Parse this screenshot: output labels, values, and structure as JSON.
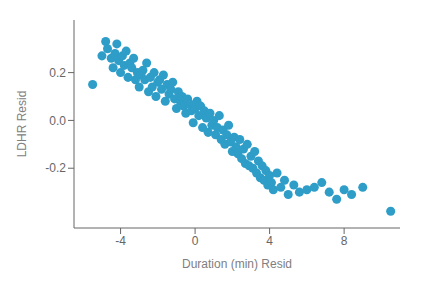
{
  "chart_data": {
    "type": "scatter",
    "xlabel": "Duration (min) Resid",
    "ylabel": "LDHR Resid",
    "color": "#2e9dc8",
    "xlim": [
      -6.5,
      11.0
    ],
    "ylim": [
      -0.45,
      0.42
    ],
    "xticks": [
      -4,
      0,
      4,
      8
    ],
    "yticks": [
      -0.2,
      {
        "value": 0.0,
        "label": "0.0"
      },
      0.2
    ],
    "grid": false,
    "x": [
      -5.5,
      -5.0,
      -4.8,
      -4.7,
      -4.5,
      -4.4,
      -4.3,
      -4.2,
      -4.1,
      -4.0,
      -3.9,
      -3.8,
      -3.7,
      -3.6,
      -3.5,
      -3.4,
      -3.3,
      -3.2,
      -3.1,
      -3.0,
      -2.9,
      -2.8,
      -2.7,
      -2.6,
      -2.5,
      -2.4,
      -2.3,
      -2.2,
      -2.1,
      -2.0,
      -1.9,
      -1.8,
      -1.7,
      -1.6,
      -1.5,
      -1.4,
      -1.3,
      -1.2,
      -1.1,
      -1.0,
      -0.9,
      -0.8,
      -0.7,
      -0.6,
      -0.5,
      -0.4,
      -0.3,
      -0.2,
      -0.1,
      0.0,
      0.1,
      0.2,
      0.3,
      0.4,
      0.5,
      0.6,
      0.7,
      0.8,
      0.9,
      1.0,
      1.1,
      1.2,
      1.3,
      1.4,
      1.5,
      1.6,
      1.7,
      1.8,
      1.9,
      2.0,
      2.1,
      2.2,
      2.3,
      2.4,
      2.5,
      2.6,
      2.7,
      2.8,
      2.9,
      3.0,
      3.1,
      3.2,
      3.3,
      3.4,
      3.5,
      3.6,
      3.7,
      3.8,
      3.9,
      4.0,
      4.1,
      4.2,
      4.4,
      4.6,
      4.8,
      5.0,
      5.3,
      5.6,
      6.0,
      6.4,
      6.8,
      7.2,
      7.6,
      8.0,
      8.4,
      9.0,
      10.5
    ],
    "y": [
      0.15,
      0.27,
      0.33,
      0.3,
      0.26,
      0.22,
      0.28,
      0.32,
      0.25,
      0.2,
      0.27,
      0.23,
      0.29,
      0.18,
      0.24,
      0.22,
      0.26,
      0.17,
      0.2,
      0.14,
      0.19,
      0.21,
      0.17,
      0.24,
      0.12,
      0.18,
      0.14,
      0.2,
      0.1,
      0.16,
      0.17,
      0.13,
      0.19,
      0.08,
      0.15,
      0.11,
      0.13,
      0.16,
      0.09,
      0.05,
      0.12,
      0.08,
      0.1,
      0.06,
      0.03,
      0.09,
      0.07,
      0.04,
      -0.01,
      0.05,
      0.08,
      0.02,
      0.06,
      -0.03,
      0.04,
      0.01,
      -0.05,
      0.03,
      -0.02,
      0.0,
      -0.06,
      -0.03,
      0.02,
      -0.08,
      -0.04,
      -0.1,
      -0.06,
      -0.02,
      -0.09,
      -0.13,
      -0.07,
      -0.11,
      -0.14,
      -0.08,
      -0.16,
      -0.12,
      -0.18,
      -0.1,
      -0.19,
      -0.15,
      -0.2,
      -0.13,
      -0.22,
      -0.17,
      -0.24,
      -0.19,
      -0.25,
      -0.21,
      -0.27,
      -0.23,
      -0.26,
      -0.29,
      -0.22,
      -0.28,
      -0.25,
      -0.31,
      -0.27,
      -0.3,
      -0.29,
      -0.28,
      -0.26,
      -0.3,
      -0.33,
      -0.29,
      -0.31,
      -0.28,
      -0.38
    ]
  }
}
